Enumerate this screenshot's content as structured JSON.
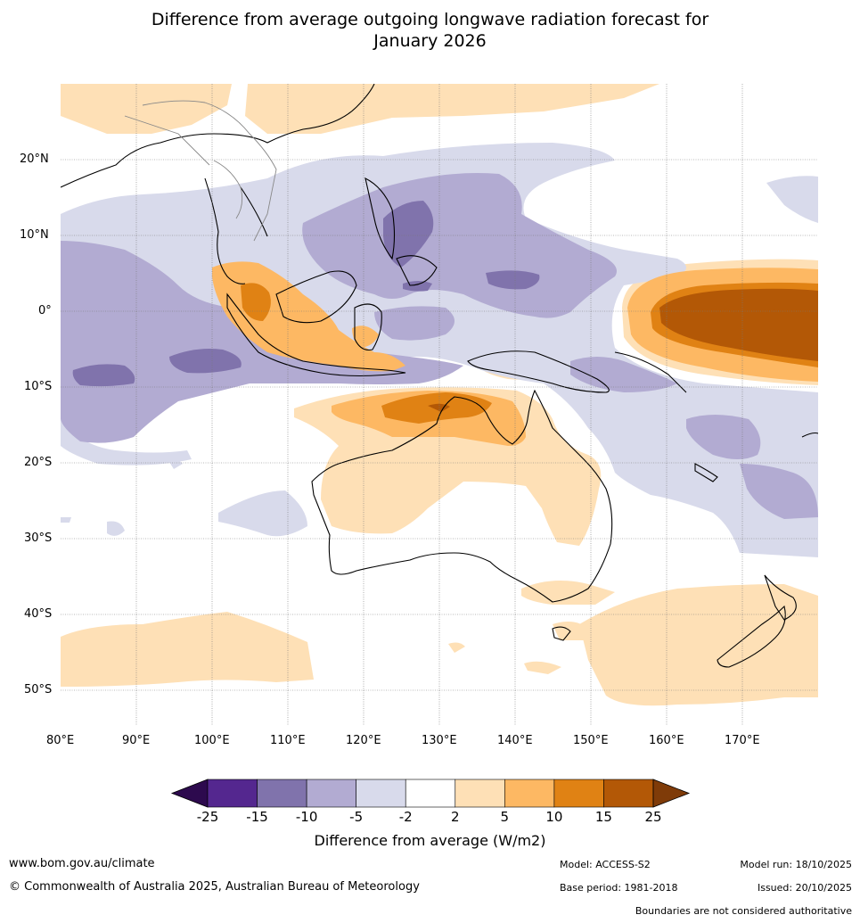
{
  "title_line1": "Difference from average outgoing longwave radiation forecast for",
  "title_line2": "January 2026",
  "lat_labels": [
    "20°N",
    "10°N",
    "0°",
    "10°S",
    "20°S",
    "30°S",
    "40°S",
    "50°S"
  ],
  "lon_labels": [
    "80°E",
    "90°E",
    "100°E",
    "110°E",
    "120°E",
    "130°E",
    "140°E",
    "150°E",
    "160°E",
    "170°E"
  ],
  "legend": {
    "title": "Difference from average (W/m2)",
    "ticks": [
      "-25",
      "-15",
      "-10",
      "-5",
      "-2",
      "2",
      "5",
      "10",
      "15",
      "25"
    ],
    "colors": [
      "#2d0a4e",
      "#54278f",
      "#8073ac",
      "#b2abd2",
      "#d8daeb",
      "#ffffff",
      "#fee0b6",
      "#fdb863",
      "#e08214",
      "#b35806",
      "#7f3b08"
    ]
  },
  "footer": {
    "website": "www.bom.gov.au/climate",
    "copyright": "© Commonwealth of Australia 2025, Australian Bureau of Meteorology",
    "model": "Model: ACCESS-S2",
    "base_period": "Base period: 1981-2018",
    "model_run": "Model run: 18/10/2025",
    "issued": "Issued: 20/10/2025",
    "disclaimer": "Boundaries are not considered authoritative"
  }
}
